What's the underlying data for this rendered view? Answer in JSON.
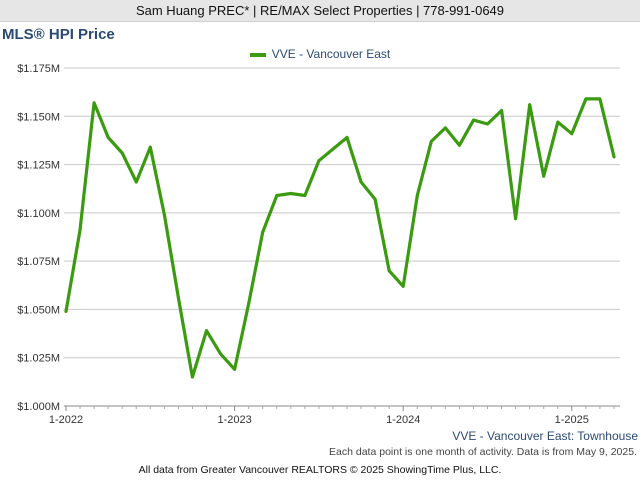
{
  "header": {
    "text": "Sam Huang PREC* | RE/MAX Select Properties | 778-991-0649"
  },
  "chart_data": {
    "type": "line",
    "title": "MLS® HPI Price",
    "subtitle": "VVE - Vancouver East: Townhouse",
    "series": [
      {
        "name": "VVE - Vancouver East",
        "color": "#3a9b10",
        "values": [
          1049000,
          1091000,
          1157000,
          1139000,
          1131000,
          1116000,
          1134000,
          1099000,
          1056000,
          1015000,
          1039000,
          1027000,
          1019000,
          1053000,
          1090000,
          1109000,
          1110000,
          1109000,
          1127000,
          1133000,
          1139000,
          1116000,
          1107000,
          1070000,
          1062000,
          1109000,
          1137000,
          1144000,
          1135000,
          1148000,
          1146000,
          1153000,
          1097000,
          1156000,
          1119000,
          1147000,
          1141000,
          1159000,
          1159000,
          1129000
        ]
      }
    ],
    "x_start": "1-2022",
    "x_ticks": [
      "1-2022",
      "1-2023",
      "1-2024",
      "1-2025"
    ],
    "y_ticks": [
      "$1.000M",
      "$1.025M",
      "$1.050M",
      "$1.075M",
      "$1.100M",
      "$1.125M",
      "$1.150M",
      "$1.175M"
    ],
    "ylim": [
      1000000,
      1175000
    ],
    "grid": true,
    "legend": "top-center"
  },
  "note": "Each data point is one month of activity. Data is from May 9, 2025.",
  "footer": "All data from Greater Vancouver REALTORS © 2025 ShowingTime Plus, LLC."
}
